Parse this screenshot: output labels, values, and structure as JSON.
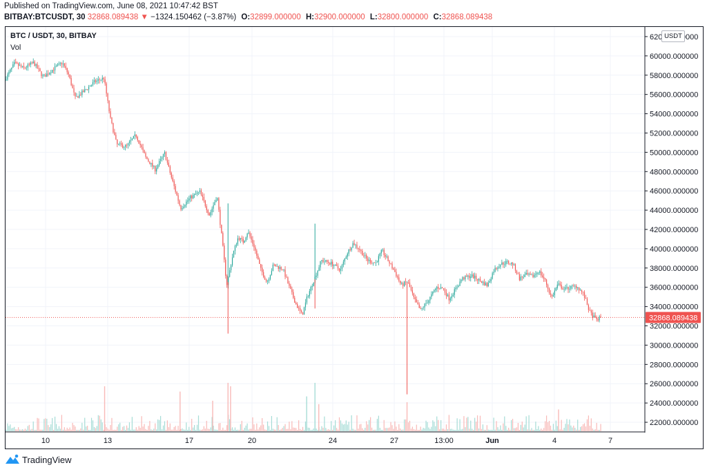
{
  "published": "Published on TradingView.com, June 08, 2021 10:47:42 BST",
  "quote": {
    "symbol": "BITBAY:BTCUSDT, 30",
    "last": "32868.089438",
    "change": "−1324.150462 (−3.87%)",
    "open_label": "O:",
    "open": "32899.000000",
    "high_label": "H:",
    "high": "32900.000000",
    "low_label": "L:",
    "low": "32800.000000",
    "close_label": "C:",
    "close": "32868.089438"
  },
  "legend": {
    "title": "BTC / USDT, 30, BITBAY",
    "volume": "Vol"
  },
  "unit_button": "USDT",
  "brand": {
    "name": "TradingView"
  },
  "colors": {
    "up": "#26a69a",
    "down": "#ef5350",
    "grid": "#f0f3fa",
    "text": "#131722",
    "price_line": "#ef5350"
  },
  "chart_data": {
    "type": "candlestick",
    "y_ticks": [
      "62000.000000",
      "60000.000000",
      "58000.000000",
      "56000.000000",
      "54000.000000",
      "52000.000000",
      "50000.000000",
      "48000.000000",
      "46000.000000",
      "44000.000000",
      "42000.000000",
      "40000.000000",
      "38000.000000",
      "36000.000000",
      "34000.000000",
      "32000.000000",
      "30000.000000",
      "28000.000000",
      "26000.000000",
      "24000.000000",
      "22000.000000"
    ],
    "ylim": [
      21000,
      63000
    ],
    "x_ticks": [
      "10",
      "13",
      "17",
      "20",
      "24",
      "27",
      "13:00",
      "Jun",
      "4",
      "7"
    ],
    "last_price": 32868.089438,
    "last_price_label": "32868.089438",
    "price_path": [
      [
        0.0,
        57500
      ],
      [
        1.5,
        59200
      ],
      [
        3,
        58700
      ],
      [
        4.5,
        59300
      ],
      [
        6,
        57800
      ],
      [
        7.5,
        58600
      ],
      [
        9,
        59300
      ],
      [
        10,
        58000
      ],
      [
        11,
        55600
      ],
      [
        12.5,
        56400
      ],
      [
        14,
        57300
      ],
      [
        15.5,
        57700
      ],
      [
        16.5,
        53500
      ],
      [
        17.5,
        50800
      ],
      [
        19,
        50600
      ],
      [
        20.5,
        51800
      ],
      [
        22,
        49500
      ],
      [
        23.5,
        48200
      ],
      [
        25,
        49900
      ],
      [
        26,
        47500
      ],
      [
        27.5,
        44200
      ],
      [
        29,
        45300
      ],
      [
        30.5,
        45900
      ],
      [
        32,
        43500
      ],
      [
        33.2,
        45500
      ],
      [
        34,
        40800
      ],
      [
        34.7,
        36200
      ],
      [
        35.7,
        39500
      ],
      [
        36.5,
        41200
      ],
      [
        37.3,
        40700
      ],
      [
        38,
        41800
      ],
      [
        39,
        40200
      ],
      [
        40,
        37900
      ],
      [
        41,
        36500
      ],
      [
        42,
        38300
      ],
      [
        43.5,
        37900
      ],
      [
        44.5,
        36000
      ],
      [
        45.5,
        34300
      ],
      [
        46.5,
        33100
      ],
      [
        47.3,
        35000
      ],
      [
        48.5,
        37000
      ],
      [
        49.5,
        38800
      ],
      [
        51,
        38500
      ],
      [
        52.5,
        37800
      ],
      [
        53.5,
        39500
      ],
      [
        54.5,
        40600
      ],
      [
        55.5,
        39900
      ],
      [
        56.7,
        38800
      ],
      [
        58,
        38500
      ],
      [
        59,
        39800
      ],
      [
        60,
        38700
      ],
      [
        61,
        37600
      ],
      [
        62,
        36200
      ],
      [
        63,
        36600
      ],
      [
        64,
        34800
      ],
      [
        65,
        33600
      ],
      [
        66.3,
        34700
      ],
      [
        67.5,
        36000
      ],
      [
        68.5,
        35900
      ],
      [
        69.5,
        34800
      ],
      [
        70.5,
        35800
      ],
      [
        71.5,
        36900
      ],
      [
        73,
        37200
      ],
      [
        74.5,
        36600
      ],
      [
        75.5,
        36200
      ],
      [
        76.5,
        37800
      ],
      [
        77.5,
        38400
      ],
      [
        78.5,
        38600
      ],
      [
        79.5,
        38400
      ],
      [
        80.5,
        36900
      ],
      [
        81.5,
        37300
      ],
      [
        82.5,
        37100
      ],
      [
        83.5,
        37700
      ],
      [
        84.5,
        36700
      ],
      [
        85.5,
        34900
      ],
      [
        86.5,
        36300
      ],
      [
        87.5,
        35800
      ],
      [
        88.5,
        36000
      ],
      [
        89.5,
        36100
      ],
      [
        90.5,
        35300
      ],
      [
        91.5,
        33400
      ],
      [
        92.5,
        32600
      ],
      [
        93.2,
        32870
      ]
    ],
    "spikes": [
      {
        "at": 34.8,
        "high": 44700,
        "low": 31200
      },
      {
        "at": 48.4,
        "high": 42600,
        "low": 33800
      },
      {
        "at": 62.8,
        "high": 36300,
        "low": 24900
      }
    ],
    "volume_spikes": [
      {
        "at": 15.5,
        "rel": 0.93
      },
      {
        "at": 27.3,
        "rel": 0.82
      },
      {
        "at": 32.4,
        "rel": 0.63
      },
      {
        "at": 34.8,
        "rel": 1.0
      },
      {
        "at": 35.2,
        "rel": 0.93
      },
      {
        "at": 47.1,
        "rel": 0.72
      },
      {
        "at": 48.4,
        "rel": 1.0
      },
      {
        "at": 49.0,
        "rel": 0.56
      },
      {
        "at": 62.8,
        "rel": 0.6
      },
      {
        "at": 86.5,
        "rel": 0.45
      }
    ]
  }
}
